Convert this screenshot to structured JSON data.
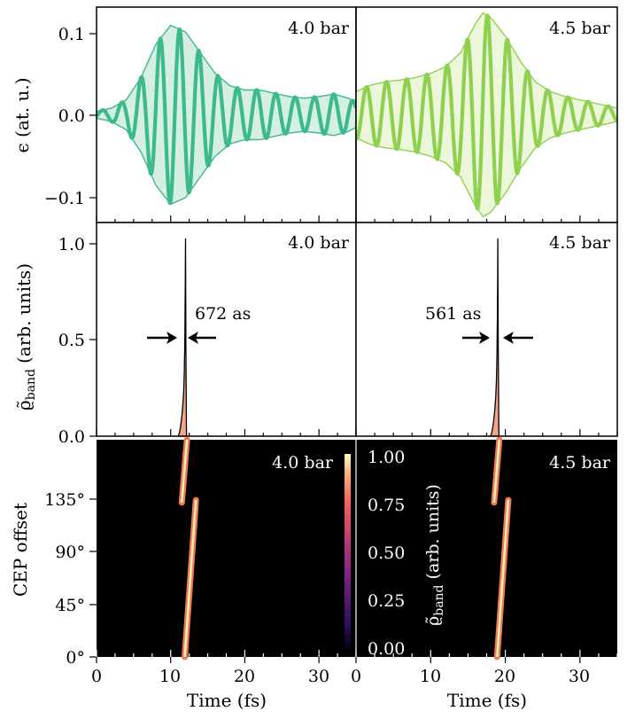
{
  "chart_data": [
    {
      "type": "line",
      "ylabel": "ϵ (at. u.)",
      "y_ticks": [
        "0.1",
        "0.0",
        "−0.1"
      ],
      "ylim": [
        -0.13,
        0.13
      ],
      "xlim": [
        0,
        35
      ],
      "panels": [
        {
          "label": "4.0 bar",
          "color": "#3dba8a",
          "fill": "#d6efe3",
          "envelope": {
            "x": [
              0,
              2,
              4,
              6,
              8,
              10,
              12,
              14,
              16,
              18,
              20,
              22,
              24,
              26,
              28,
              30,
              32,
              34,
              35
            ],
            "y": [
              0.004,
              0.008,
              0.018,
              0.045,
              0.085,
              0.108,
              0.1,
              0.075,
              0.05,
              0.035,
              0.03,
              0.03,
              0.026,
              0.022,
              0.02,
              0.022,
              0.025,
              0.02,
              0.015
            ]
          },
          "carrier_center": 11.2,
          "carrier_period": 2.6
        },
        {
          "label": "4.5 bar",
          "color": "#8fd14f",
          "fill": "#ebf6da",
          "envelope": {
            "x": [
              0,
              2,
              4,
              6,
              8,
              10,
              12,
              14,
              16,
              17,
              18,
              20,
              22,
              24,
              26,
              28,
              30,
              32,
              34,
              35
            ],
            "y": [
              0.028,
              0.036,
              0.04,
              0.042,
              0.045,
              0.05,
              0.058,
              0.075,
              0.11,
              0.123,
              0.118,
              0.095,
              0.065,
              0.04,
              0.028,
              0.022,
              0.018,
              0.014,
              0.01,
              0.008
            ]
          },
          "carrier_center": 17.6,
          "carrier_period": 2.7
        }
      ]
    },
    {
      "type": "area",
      "ylabel": "ϱ̃",
      "ylabel_sub": "band",
      "ylabel_units": "(arb. units)",
      "y_ticks": [
        "1.0",
        "0.5",
        "0.0"
      ],
      "ylim": [
        0,
        1.08
      ],
      "xlim": [
        0,
        35
      ],
      "fill_color": "#f4a488",
      "panels": [
        {
          "label": "4.0 bar",
          "annotation": "672 as",
          "peak_x": 12.0,
          "x_start": 11.0,
          "peak_y": 1.0
        },
        {
          "label": "4.5 bar",
          "annotation": "561 as",
          "peak_x": 19.0,
          "x_start": 18.0,
          "peak_y": 1.0
        }
      ]
    },
    {
      "type": "heatmap",
      "ylabel": "CEP offset",
      "xlabel": "Time (fs)",
      "y_ticks": [
        "0°",
        "45°",
        "90°",
        "135°"
      ],
      "x_ticks": [
        "0",
        "10",
        "20",
        "30"
      ],
      "ylim": [
        0,
        180
      ],
      "xlim": [
        0,
        35
      ],
      "colorbar": {
        "ticks": [
          "1.00",
          "0.75",
          "0.50",
          "0.25",
          "0.00"
        ],
        "label": "ϱ̃",
        "label_sub": "band",
        "label_units": "(arb. units)",
        "range": [
          0,
          1
        ]
      },
      "panels": [
        {
          "label": "4.0 bar",
          "streak_upper": {
            "x": [
              11.5,
              12.2
            ],
            "y": [
              128,
              180
            ]
          },
          "streak_lower": {
            "x": [
              11.9,
              13.4
            ],
            "y": [
              0,
              130
            ]
          }
        },
        {
          "label": "4.5 bar",
          "streak_upper": {
            "x": [
              18.5,
              19.2
            ],
            "y": [
              128,
              180
            ]
          },
          "streak_lower": {
            "x": [
              18.9,
              20.4
            ],
            "y": [
              0,
              130
            ]
          }
        }
      ]
    }
  ]
}
